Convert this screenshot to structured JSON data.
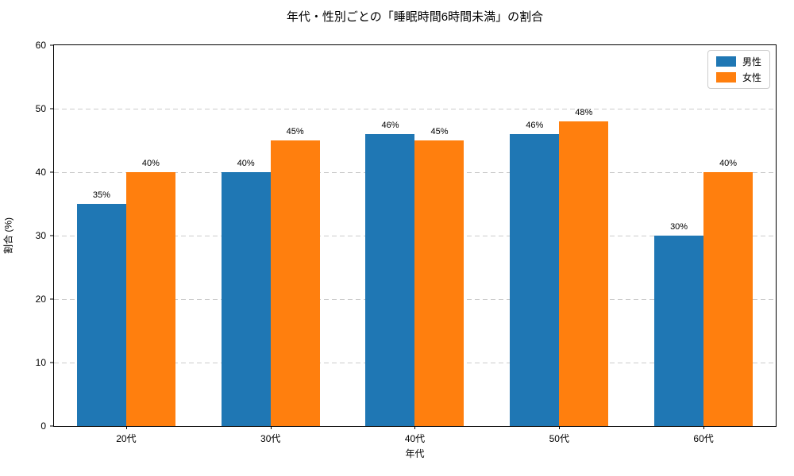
{
  "chart_data": {
    "type": "bar",
    "title": "年代・性別ごとの「睡眠時間6時間未満」の割合",
    "xlabel": "年代",
    "ylabel": "割合 (%)",
    "categories": [
      "20代",
      "30代",
      "40代",
      "50代",
      "60代"
    ],
    "series": [
      {
        "name": "男性",
        "color": "#1f77b4",
        "values": [
          35,
          40,
          46,
          46,
          30
        ]
      },
      {
        "name": "女性",
        "color": "#ff7f0e",
        "values": [
          40,
          45,
          45,
          48,
          40
        ]
      }
    ],
    "value_label_suffix": "%",
    "ylim": [
      0,
      60
    ],
    "yticks": [
      0,
      10,
      20,
      30,
      40,
      50,
      60
    ],
    "grid": true,
    "grid_style": "dashed",
    "grid_color": "#cccccc",
    "spine_color": "#000000",
    "background_color": "#ffffff",
    "legend_position": "upper right",
    "legend_labels": [
      "男性",
      "女性"
    ]
  }
}
